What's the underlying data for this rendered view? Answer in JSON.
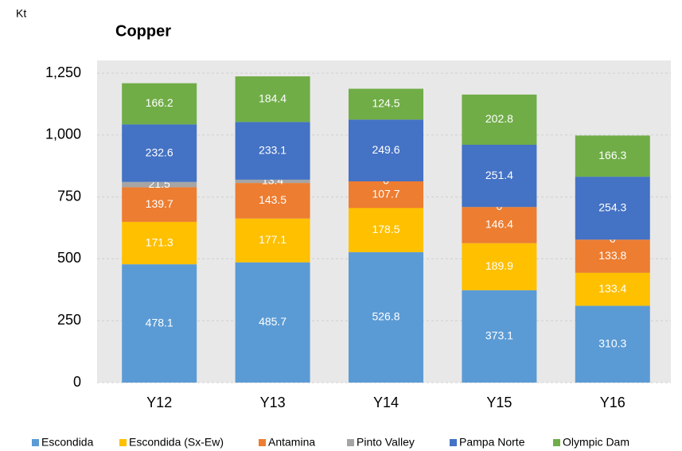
{
  "chart_data": {
    "type": "bar",
    "stacked": true,
    "title": "Copper",
    "unit_label": "Kt",
    "categories": [
      "Y12",
      "Y13",
      "Y14",
      "Y15",
      "Y16"
    ],
    "series": [
      {
        "name": "Escondida",
        "color": "#5b9bd5",
        "values": [
          478.1,
          485.7,
          526.8,
          373.1,
          310.3
        ]
      },
      {
        "name": "Escondida (Sx-Ew)",
        "color": "#ffc000",
        "values": [
          171.3,
          177.1,
          178.5,
          189.9,
          133.4
        ]
      },
      {
        "name": "Antamina",
        "color": "#ed7d31",
        "values": [
          139.7,
          143.5,
          107.7,
          146.4,
          133.8
        ]
      },
      {
        "name": "Pinto Valley",
        "color": "#a5a5a5",
        "values": [
          21.5,
          13.4,
          0,
          0,
          0
        ]
      },
      {
        "name": "Pampa Norte",
        "color": "#4472c4",
        "values": [
          232.6,
          233.1,
          249.6,
          251.4,
          254.3
        ]
      },
      {
        "name": "Olympic Dam",
        "color": "#70ad47",
        "values": [
          166.2,
          184.4,
          124.5,
          202.8,
          166.3
        ]
      }
    ],
    "ylim": [
      0,
      1300
    ],
    "yticks": [
      0,
      250,
      500,
      750,
      {
        "value": 1000,
        "label": "1,000"
      },
      {
        "value": 1250,
        "label": "1,250"
      }
    ],
    "grid": true,
    "legend": "bottom"
  }
}
